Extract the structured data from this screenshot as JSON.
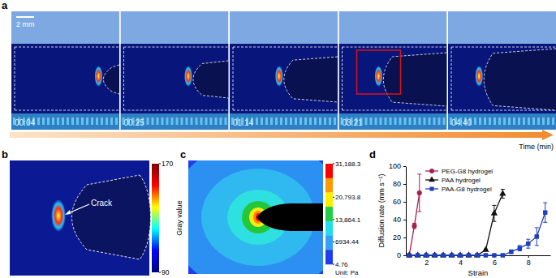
{
  "panel_labels": [
    "a",
    "b",
    "c",
    "d"
  ],
  "panel_a": {
    "scale_bar": "2 mm",
    "timestamps": [
      "00:04",
      "00:25",
      "01:14",
      "03:21",
      "04:40"
    ],
    "time_axis": "Time (min)"
  },
  "panel_b": {
    "annotation": "Crack",
    "colorbar": {
      "title": "Gray value",
      "range": [
        90,
        170
      ],
      "ticks": [
        90,
        170
      ]
    }
  },
  "panel_c": {
    "colorbar": {
      "unit": "Unit: Pa",
      "range": [
        4.76,
        31188.3
      ],
      "ticks": [
        {
          "value": 31188.3,
          "label": "31,188.3"
        },
        {
          "value": 20793.8,
          "label": "20,793.8"
        },
        {
          "value": 13864.1,
          "label": "13,864.1"
        },
        6934.44,
        4.76
      ]
    }
  },
  "chart_data": {
    "type": "line",
    "x_label": "Strain",
    "y_label": "Diffusion rate (mm s⁻¹)",
    "xlim": [
      0.8,
      9.3
    ],
    "xticks": [
      2,
      4,
      6,
      8
    ],
    "ylim": [
      0,
      100
    ],
    "yticks": [
      0,
      20,
      40,
      60,
      80,
      100
    ],
    "legend": "upper left",
    "series": [
      {
        "name": "PEG-G8 hydrogel",
        "color": "#a3214f",
        "marker": "circle",
        "x": [
          1,
          1.3,
          1.6
        ],
        "values": [
          0,
          33,
          70
        ],
        "errors": [
          0,
          3,
          21
        ]
      },
      {
        "name": "PAA hydrogel",
        "color": "#111111",
        "marker": "triangle",
        "x": [
          1,
          1.5,
          2,
          2.5,
          3,
          3.5,
          4,
          4.5,
          5,
          5.5,
          6,
          6.5
        ],
        "values": [
          0,
          0,
          0,
          0,
          0,
          0,
          0,
          0,
          0,
          6,
          47,
          69
        ],
        "errors": [
          0,
          0,
          0,
          0,
          0,
          0,
          0,
          0,
          0,
          1,
          9,
          5
        ]
      },
      {
        "name": "PAA-G8 hydrogel",
        "color": "#1f3fbf",
        "marker": "square",
        "x": [
          1,
          1.5,
          2,
          2.5,
          3,
          3.5,
          4,
          4.5,
          5,
          5.5,
          6,
          6.5,
          7,
          7.5,
          8,
          8.5,
          9
        ],
        "values": [
          0,
          0,
          0,
          0,
          0,
          0,
          0,
          0,
          0,
          0,
          0,
          0,
          4,
          8,
          13,
          21,
          48
        ],
        "errors": [
          0,
          0,
          0,
          0,
          0,
          0,
          0,
          0,
          0,
          0,
          0,
          0,
          2,
          3,
          5,
          10,
          11
        ]
      }
    ]
  }
}
